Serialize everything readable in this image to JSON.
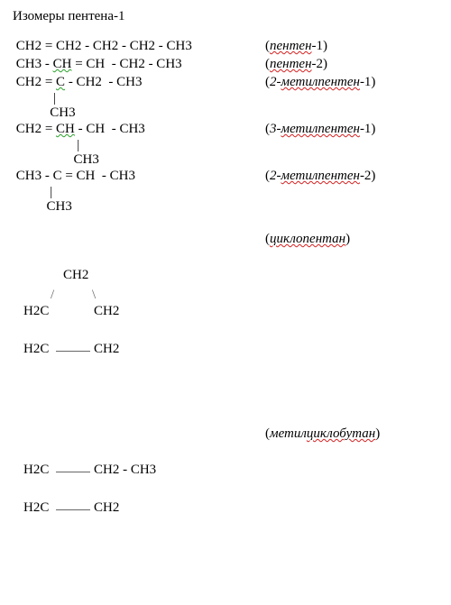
{
  "title": "Изомеры пентена-1",
  "isomers": [
    {
      "formula_parts": [
        {
          "t": " CH2 = CH2 - CH2 - CH2 - CH3",
          "style": "plain"
        }
      ],
      "label_parts": [
        {
          "t": "(",
          "style": "paren"
        },
        {
          "t": "пентен",
          "style": "wavy-red"
        },
        {
          "t": "-1)",
          "style": "paren"
        }
      ],
      "branches": []
    },
    {
      "formula_parts": [
        {
          "t": " CH3 - ",
          "style": "plain"
        },
        {
          "t": "CH",
          "style": "wavy-green"
        },
        {
          "t": " = CH  - CH2 - CH3",
          "style": "plain"
        }
      ],
      "label_parts": [
        {
          "t": "(",
          "style": "paren"
        },
        {
          "t": "пентен",
          "style": "wavy-red"
        },
        {
          "t": "-2)",
          "style": "paren"
        }
      ],
      "branches": []
    },
    {
      "formula_parts": [
        {
          "t": " CH2 = ",
          "style": "plain"
        },
        {
          "t": "C",
          "style": "wavy-green"
        },
        {
          "t": " - CH2  - CH3",
          "style": "plain"
        }
      ],
      "label_parts": [
        {
          "t": "(",
          "style": "paren"
        },
        {
          "t": "2-",
          "style": "plain"
        },
        {
          "t": "метилпентен",
          "style": "wavy-red"
        },
        {
          "t": "-1)",
          "style": "paren"
        }
      ],
      "branches": [
        "            |",
        "           CH3"
      ]
    },
    {
      "formula_parts": [
        {
          "t": " CH2 = ",
          "style": "plain"
        },
        {
          "t": "CH",
          "style": "wavy-green"
        },
        {
          "t": " - CH  - CH3",
          "style": "plain"
        }
      ],
      "label_parts": [
        {
          "t": "(",
          "style": "paren"
        },
        {
          "t": "3-",
          "style": "plain"
        },
        {
          "t": "метилпентен",
          "style": "wavy-red"
        },
        {
          "t": "-1)",
          "style": "paren"
        }
      ],
      "branches": [
        "                   |",
        "                  CH3"
      ]
    },
    {
      "formula_parts": [
        {
          "t": " CH3 - C = CH  - CH3",
          "style": "plain"
        }
      ],
      "label_parts": [
        {
          "t": "(",
          "style": "paren"
        },
        {
          "t": "2-",
          "style": "plain"
        },
        {
          "t": "метилпентен",
          "style": "wavy-red"
        },
        {
          "t": "-2)",
          "style": "paren"
        }
      ],
      "branches": [
        "           |",
        "          CH3"
      ]
    }
  ],
  "cyclopentane": {
    "label_parts": [
      {
        "t": "(",
        "style": "paren"
      },
      {
        "t": "циклопентан",
        "style": "wavy-red"
      },
      {
        "t": ")",
        "style": "paren"
      }
    ],
    "nodes": {
      "top": "CH2",
      "ul": "H2C",
      "ur": "CH2",
      "ll": "H2C",
      "lr": "CH2"
    }
  },
  "methylcyclobutane": {
    "label_parts": [
      {
        "t": "(",
        "style": "paren"
      },
      {
        "t": "метил",
        "style": "plain"
      },
      {
        "t": "циклобутан",
        "style": "wavy-red"
      },
      {
        "t": ")",
        "style": "paren"
      }
    ],
    "nodes": {
      "ul": "H2C",
      "ur": "CH2 - CH3",
      "ll": "H2C",
      "lr": "CH2"
    }
  },
  "colors": {
    "text": "#000000",
    "wavy_red": "#d42020",
    "wavy_green": "#2aa02a",
    "line_gray": "#666666",
    "background": "#ffffff"
  }
}
